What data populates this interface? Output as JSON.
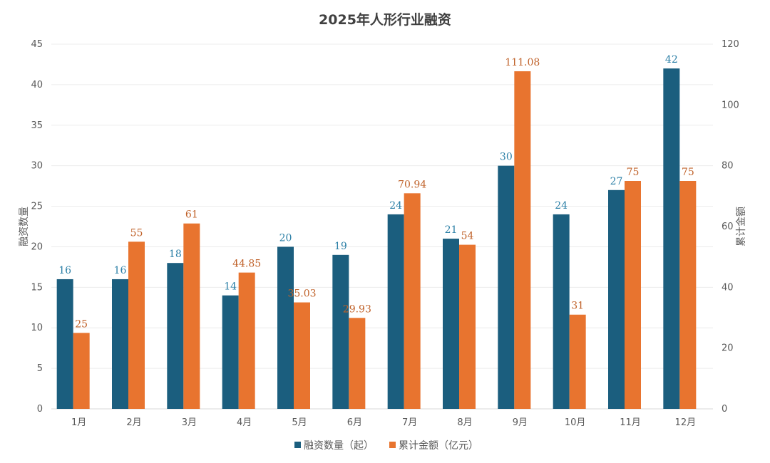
{
  "chart_data": {
    "type": "bar",
    "title": "2025年人形行业融资",
    "categories": [
      "1月",
      "2月",
      "3月",
      "4月",
      "5月",
      "6月",
      "7月",
      "8月",
      "9月",
      "10月",
      "11月",
      "12月"
    ],
    "series": [
      {
        "name": "融资数量（起）",
        "axis": "left",
        "color": "#1b5e7e",
        "label_color": "#2b7fa6",
        "values": [
          16,
          16,
          18,
          14,
          20,
          19,
          24,
          21,
          30,
          24,
          27,
          42
        ],
        "labels": [
          "16",
          "16",
          "18",
          "14",
          "20",
          "19",
          "24",
          "21",
          "30",
          "24",
          "27",
          "42"
        ]
      },
      {
        "name": "累计金额（亿元）",
        "axis": "right",
        "color": "#e8742f",
        "label_color": "#c0622a",
        "values": [
          25,
          55,
          61,
          44.85,
          35.03,
          29.93,
          70.94,
          54,
          111.08,
          31,
          75,
          75
        ],
        "labels": [
          "25",
          "55",
          "61",
          "44.85",
          "35.03",
          "29.93",
          "70.94",
          "54",
          "111.08",
          "31",
          "75",
          "75"
        ]
      }
    ],
    "ylabel": "融资数量",
    "y2label": "累计金额",
    "ylim": [
      0,
      45
    ],
    "y2lim": [
      0,
      120
    ],
    "yticks": [
      "0",
      "5",
      "10",
      "15",
      "20",
      "25",
      "30",
      "35",
      "40",
      "45"
    ],
    "y2ticks": [
      "0",
      "20",
      "40",
      "60",
      "80",
      "100",
      "120"
    ],
    "grid": true,
    "legend": "bottom"
  }
}
